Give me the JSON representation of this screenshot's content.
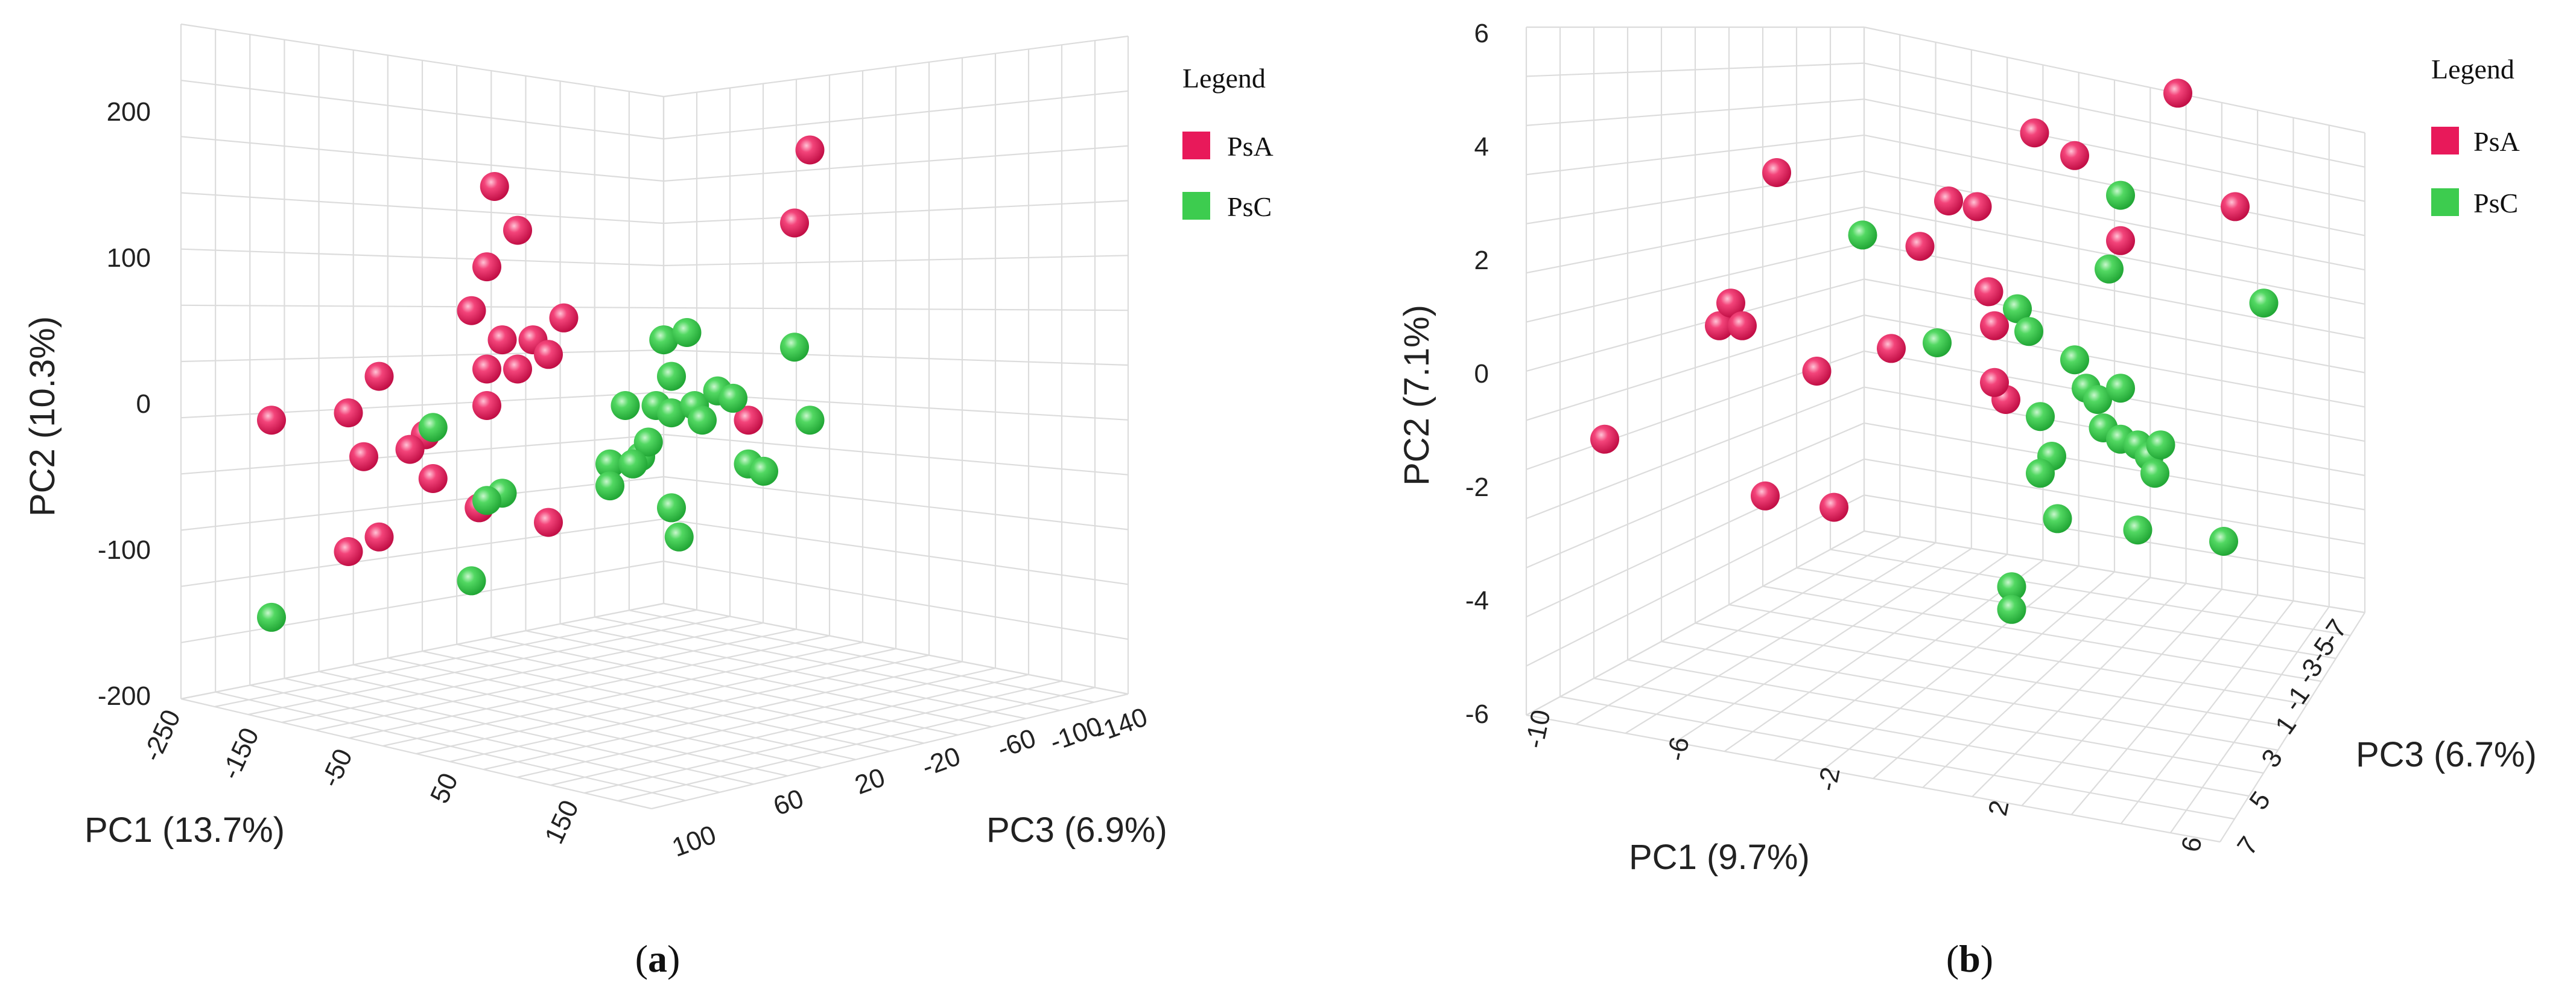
{
  "colors": {
    "psa": "#e8195a",
    "psc": "#3dcc4f",
    "grid": "#dcdcdc"
  },
  "chart_data": [
    {
      "type": "scatter",
      "panel": "(a)",
      "panel_open": "(",
      "panel_letter": "a",
      "panel_close": ")",
      "xlabel": "PC1 (13.7%)",
      "ylabel": "PC2 (10.3%)",
      "zlabel": "PC3 (6.9%)",
      "y_ticks": [
        "200",
        "100",
        "0",
        "-100",
        "-200"
      ],
      "x_ticks": [
        "-250",
        "-150",
        "-50",
        "50",
        "150"
      ],
      "z_ticks": [
        "100",
        "60",
        "20",
        "-20",
        "-60",
        "-100",
        "-140"
      ],
      "legend": {
        "title": "Legend",
        "entries": [
          "PsA",
          "PsC"
        ]
      },
      "series": [
        {
          "name": "PsA",
          "points": [
            [
              -60,
              95
            ],
            [
              -55,
              150
            ],
            [
              -40,
              120
            ],
            [
              -70,
              65
            ],
            [
              -50,
              45
            ],
            [
              -60,
              25
            ],
            [
              -40,
              25
            ],
            [
              -30,
              45
            ],
            [
              -20,
              35
            ],
            [
              -60,
              0
            ],
            [
              -200,
              -10
            ],
            [
              -150,
              -5
            ],
            [
              -140,
              -35
            ],
            [
              -130,
              20
            ],
            [
              -100,
              -20
            ],
            [
              -110,
              -30
            ],
            [
              -95,
              -50
            ],
            [
              -130,
              -90
            ],
            [
              -150,
              -100
            ],
            [
              -65,
              -70
            ],
            [
              -10,
              60
            ],
            [
              110,
              -10
            ],
            [
              150,
              175
            ],
            [
              140,
              125
            ],
            [
              -20,
              -80
            ]
          ]
        },
        {
          "name": "PsC",
          "points": [
            [
              -95,
              -15
            ],
            [
              -50,
              -60
            ],
            [
              -60,
              -65
            ],
            [
              -200,
              -145
            ],
            [
              -70,
              -120
            ],
            [
              20,
              -40
            ],
            [
              20,
              -55
            ],
            [
              30,
              0
            ],
            [
              40,
              -35
            ],
            [
              45,
              -25
            ],
            [
              50,
              0
            ],
            [
              60,
              -5
            ],
            [
              55,
              45
            ],
            [
              60,
              20
            ],
            [
              70,
              50
            ],
            [
              75,
              0
            ],
            [
              80,
              -10
            ],
            [
              90,
              10
            ],
            [
              100,
              5
            ],
            [
              60,
              -70
            ],
            [
              65,
              -90
            ],
            [
              110,
              -40
            ],
            [
              120,
              -45
            ],
            [
              140,
              40
            ],
            [
              150,
              -10
            ],
            [
              35,
              -40
            ]
          ]
        }
      ]
    },
    {
      "type": "scatter",
      "panel": "(b)",
      "panel_open": "(",
      "panel_letter": "b",
      "panel_close": ")",
      "xlabel": "PC1 (9.7%)",
      "ylabel": "PC2 (7.1%)",
      "zlabel": "PC3 (6.7%)",
      "y_ticks": [
        "6",
        "4",
        "2",
        "0",
        "-2",
        "-4",
        "-6"
      ],
      "x_ticks": [
        "-10",
        "-6",
        "-2",
        "2",
        "6"
      ],
      "z_ticks": [
        "7",
        "5",
        "3",
        "1",
        "-1",
        "-3",
        "-5",
        "-7"
      ],
      "legend": {
        "title": "Legend",
        "entries": [
          "PsA",
          "PsC"
        ]
      },
      "series": [
        {
          "name": "PsA",
          "points": [
            [
              -8,
              -1.2
            ],
            [
              -6,
              0.8
            ],
            [
              -5.8,
              1.2
            ],
            [
              -5.6,
              0.8
            ],
            [
              -5,
              3.5
            ],
            [
              -5.2,
              -2.2
            ],
            [
              -4,
              -2.4
            ],
            [
              -4.3,
              0
            ],
            [
              -3,
              0.4
            ],
            [
              -2.5,
              2.2
            ],
            [
              -2,
              3
            ],
            [
              -1.5,
              2.9
            ],
            [
              -1.3,
              1.4
            ],
            [
              -1.2,
              0.8
            ],
            [
              -1,
              -0.5
            ],
            [
              -1.2,
              -0.2
            ],
            [
              -0.5,
              4.2
            ],
            [
              0.2,
              3.8
            ],
            [
              1,
              2.3
            ],
            [
              2,
              4.9
            ],
            [
              3,
              2.9
            ]
          ]
        },
        {
          "name": "PsC",
          "points": [
            [
              -3.5,
              2.4
            ],
            [
              -2.2,
              0.5
            ],
            [
              -0.8,
              1.1
            ],
            [
              -0.6,
              0.7
            ],
            [
              -0.4,
              -0.8
            ],
            [
              -0.2,
              -1.5
            ],
            [
              -0.4,
              -1.8
            ],
            [
              -0.1,
              -2.6
            ],
            [
              0.2,
              0.2
            ],
            [
              0.4,
              -0.3
            ],
            [
              0.6,
              -0.5
            ],
            [
              0.7,
              -1
            ],
            [
              1,
              -0.3
            ],
            [
              1,
              -1.2
            ],
            [
              1.3,
              -1.3
            ],
            [
              1.5,
              -1.5
            ],
            [
              1.7,
              -1.3
            ],
            [
              1.6,
              -1.8
            ],
            [
              1,
              3.1
            ],
            [
              0.8,
              1.8
            ],
            [
              1.3,
              -2.8
            ],
            [
              2.8,
              -3
            ],
            [
              3.5,
              1.2
            ],
            [
              -0.9,
              -3.8
            ],
            [
              -0.9,
              -4.2
            ]
          ]
        }
      ]
    }
  ]
}
